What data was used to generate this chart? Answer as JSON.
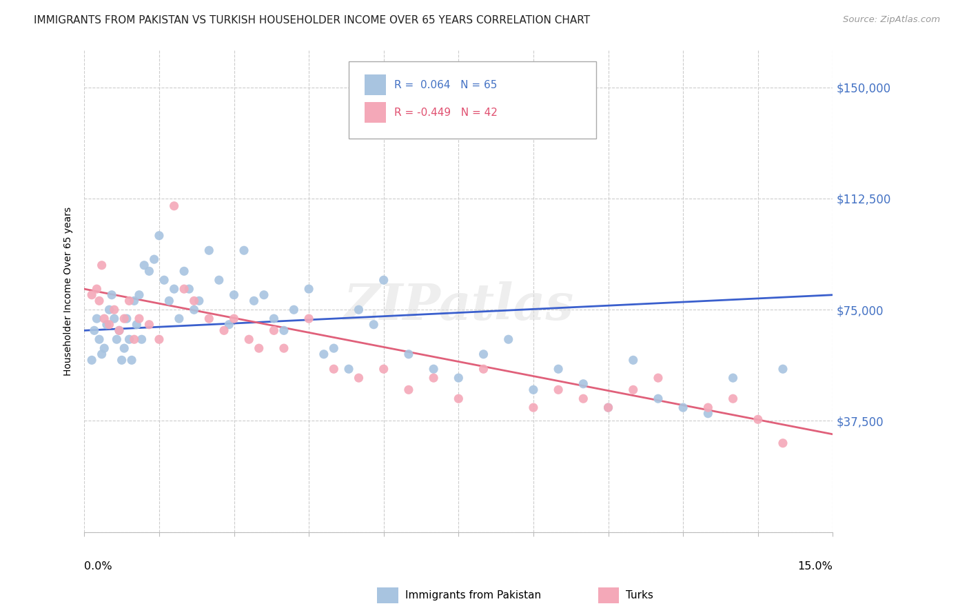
{
  "title": "IMMIGRANTS FROM PAKISTAN VS TURKISH HOUSEHOLDER INCOME OVER 65 YEARS CORRELATION CHART",
  "source": "Source: ZipAtlas.com",
  "ylabel": "Householder Income Over 65 years",
  "xlim": [
    0.0,
    15.0
  ],
  "ylim": [
    0,
    162500
  ],
  "yticks": [
    0,
    37500,
    75000,
    112500,
    150000
  ],
  "ytick_labels": [
    "",
    "$37,500",
    "$75,000",
    "$112,500",
    "$150,000"
  ],
  "color_pakistan": "#a8c4e0",
  "color_turks": "#f4a8b8",
  "color_line_pakistan": "#3a5fcd",
  "color_line_turks": "#e0607a",
  "color_axis_labels": "#4472c4",
  "pakistan_x": [
    0.15,
    0.2,
    0.25,
    0.3,
    0.35,
    0.4,
    0.45,
    0.5,
    0.55,
    0.6,
    0.65,
    0.7,
    0.75,
    0.8,
    0.85,
    0.9,
    0.95,
    1.0,
    1.05,
    1.1,
    1.15,
    1.2,
    1.3,
    1.4,
    1.5,
    1.6,
    1.7,
    1.8,
    1.9,
    2.0,
    2.1,
    2.2,
    2.3,
    2.5,
    2.7,
    2.9,
    3.0,
    3.2,
    3.4,
    3.6,
    3.8,
    4.0,
    4.2,
    4.5,
    4.8,
    5.0,
    5.3,
    5.5,
    5.8,
    6.0,
    6.5,
    7.0,
    7.5,
    8.0,
    8.5,
    9.0,
    9.5,
    10.0,
    10.5,
    11.0,
    11.5,
    12.0,
    12.5,
    13.0,
    14.0
  ],
  "pakistan_y": [
    58000,
    68000,
    72000,
    65000,
    60000,
    62000,
    70000,
    75000,
    80000,
    72000,
    65000,
    68000,
    58000,
    62000,
    72000,
    65000,
    58000,
    78000,
    70000,
    80000,
    65000,
    90000,
    88000,
    92000,
    100000,
    85000,
    78000,
    82000,
    72000,
    88000,
    82000,
    75000,
    78000,
    95000,
    85000,
    70000,
    80000,
    95000,
    78000,
    80000,
    72000,
    68000,
    75000,
    82000,
    60000,
    62000,
    55000,
    75000,
    70000,
    85000,
    60000,
    55000,
    52000,
    60000,
    65000,
    48000,
    55000,
    50000,
    42000,
    58000,
    45000,
    42000,
    40000,
    52000,
    55000
  ],
  "turks_x": [
    0.15,
    0.25,
    0.3,
    0.4,
    0.5,
    0.6,
    0.7,
    0.8,
    0.9,
    1.0,
    1.1,
    1.3,
    1.5,
    1.8,
    2.0,
    2.2,
    2.5,
    2.8,
    3.0,
    3.3,
    3.5,
    3.8,
    4.0,
    4.5,
    5.0,
    5.5,
    6.0,
    6.5,
    7.0,
    7.5,
    8.0,
    9.0,
    9.5,
    10.0,
    10.5,
    11.0,
    11.5,
    12.5,
    13.0,
    13.5,
    14.0,
    0.35
  ],
  "turks_y": [
    80000,
    82000,
    78000,
    72000,
    70000,
    75000,
    68000,
    72000,
    78000,
    65000,
    72000,
    70000,
    65000,
    110000,
    82000,
    78000,
    72000,
    68000,
    72000,
    65000,
    62000,
    68000,
    62000,
    72000,
    55000,
    52000,
    55000,
    48000,
    52000,
    45000,
    55000,
    42000,
    48000,
    45000,
    42000,
    48000,
    52000,
    42000,
    45000,
    38000,
    30000,
    90000
  ]
}
